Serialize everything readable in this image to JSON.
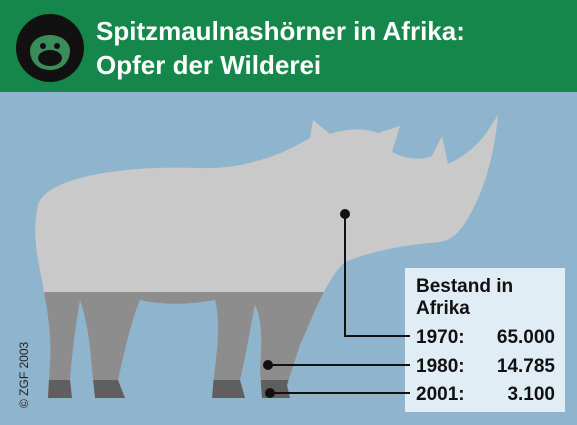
{
  "header": {
    "title_lines": [
      "Spitzmaulnashörner in Afrika:",
      "Opfer der Wilderei"
    ]
  },
  "legend": {
    "heading_lines": [
      "Bestand in",
      "Afrika"
    ],
    "rows": [
      {
        "year": "1970:",
        "value": "65.000"
      },
      {
        "year": "1980:",
        "value": "14.785"
      },
      {
        "year": "2001:",
        "value": "3.100"
      }
    ]
  },
  "copyright": "© ZGF 2003"
}
